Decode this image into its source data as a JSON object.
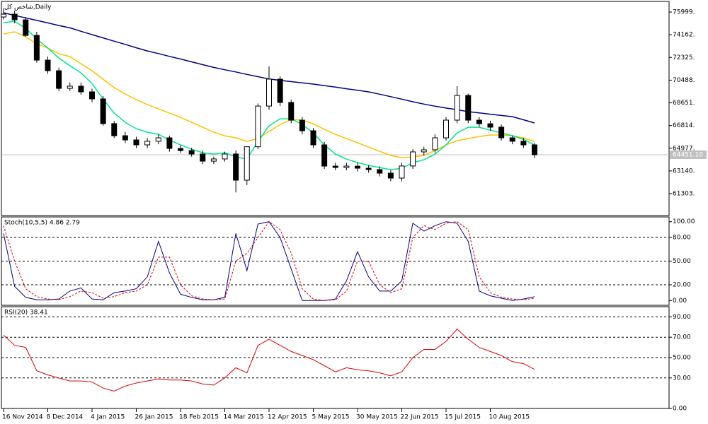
{
  "chart_data": [
    {
      "type": "candlestick",
      "title": "شاخص کل,Daily",
      "categories": [
        "16 Nov 2014",
        null,
        null,
        null,
        "8 Dec 2014",
        null,
        null,
        null,
        "4 Jan 2015",
        null,
        null,
        null,
        "26 Jan 2015",
        null,
        null,
        null,
        "18 Feb 2015",
        null,
        null,
        null,
        "14 Mar 2015",
        null,
        null,
        null,
        "12 Apr 2015",
        null,
        null,
        null,
        "5 May 2015",
        null,
        null,
        null,
        "30 May 2015",
        null,
        null,
        null,
        "22 Jun 2015",
        null,
        null,
        null,
        "15 Jul 2015",
        null,
        null,
        null,
        "10 Aug 2015",
        null,
        null,
        null,
        null
      ],
      "open": [
        75600,
        75830,
        75370,
        74110,
        72110,
        71250,
        69820,
        70000,
        69540,
        68970,
        66970,
        65990,
        65650,
        65250,
        65540,
        65820,
        64960,
        64790,
        64510,
        63930,
        64110,
        64510,
        62390,
        65100,
        68390,
        70570,
        68680,
        67250,
        66390,
        65250,
        63530,
        63420,
        63530,
        63360,
        63250,
        62960,
        62560,
        63540,
        64680,
        64850,
        65820,
        67250,
        69250,
        67250,
        66960,
        66680,
        65820,
        65540,
        65250
      ],
      "high": [
        76300,
        76100,
        75600,
        74400,
        72400,
        71500,
        70300,
        70300,
        69800,
        69200,
        67200,
        66300,
        65900,
        65800,
        66100,
        66000,
        65200,
        65000,
        64800,
        64300,
        64700,
        64800,
        65100,
        68600,
        71600,
        70800,
        68900,
        67500,
        66600,
        65500,
        63800,
        63800,
        63800,
        63600,
        63500,
        63200,
        63800,
        64900,
        65100,
        66100,
        67500,
        70000,
        69400,
        67500,
        67200,
        66900,
        66000,
        65800,
        65400
      ],
      "low": [
        75400,
        75100,
        74000,
        71900,
        71000,
        69600,
        69600,
        69300,
        68700,
        66800,
        65800,
        65400,
        65000,
        65000,
        65300,
        64700,
        64600,
        64300,
        63700,
        63700,
        63900,
        61400,
        62000,
        64900,
        68100,
        68400,
        67000,
        66100,
        65000,
        63300,
        63200,
        63200,
        63100,
        63000,
        62700,
        62300,
        62300,
        63300,
        64400,
        64600,
        65600,
        67000,
        67000,
        66700,
        66400,
        65600,
        65300,
        65000,
        64200
      ],
      "close": [
        75830,
        75370,
        74110,
        72110,
        71250,
        69820,
        70000,
        69540,
        68970,
        66970,
        65990,
        65650,
        65250,
        65540,
        65820,
        64960,
        64790,
        64510,
        63930,
        64110,
        64510,
        62390,
        65100,
        68390,
        70570,
        68680,
        67250,
        66390,
        65250,
        63530,
        63420,
        63530,
        63360,
        63250,
        62960,
        62560,
        63540,
        64680,
        64850,
        65820,
        67250,
        69250,
        67250,
        66960,
        66680,
        65820,
        65540,
        65250,
        64450
      ],
      "series": [
        {
          "color": "#00008b",
          "values": [
            75940,
            75730,
            75530,
            75320,
            75120,
            74910,
            74720,
            74440,
            74170,
            73910,
            73640,
            73380,
            73110,
            72850,
            72640,
            72410,
            72200,
            71970,
            71740,
            71520,
            71330,
            71150,
            70950,
            70770,
            70580,
            70470,
            70370,
            70270,
            70170,
            70050,
            69920,
            69790,
            69670,
            69540,
            69350,
            69150,
            68950,
            68740,
            68550,
            68380,
            68230,
            68090,
            67940,
            67840,
            67730,
            67630,
            67530,
            67280,
            67020
          ]
        },
        {
          "color": "#ffc000",
          "values": [
            74226,
            74398,
            73997,
            73425,
            73082,
            72624,
            72395,
            71823,
            71251,
            70565,
            69879,
            69364,
            68906,
            68506,
            68163,
            67820,
            67476,
            67076,
            66676,
            66275,
            65989,
            65818,
            65532,
            65760,
            66332,
            66904,
            67305,
            67247,
            66961,
            66504,
            66103,
            65760,
            65417,
            65074,
            64730,
            64387,
            64216,
            64273,
            64387,
            64788,
            65245,
            65589,
            65760,
            65932,
            66046,
            66046,
            65989,
            65818,
            65532
          ]
        },
        {
          "color": "#00e68a",
          "values": [
            75141,
            75255,
            74684,
            73825,
            73082,
            72281,
            71652,
            71080,
            70222,
            68964,
            67820,
            67076,
            66561,
            66275,
            66103,
            65646,
            65245,
            64902,
            64616,
            64502,
            64616,
            64273,
            64101,
            65532,
            66790,
            67362,
            67362,
            66904,
            66218,
            65245,
            64502,
            64101,
            63815,
            63586,
            63415,
            63243,
            63357,
            63815,
            64044,
            64502,
            65245,
            66218,
            66676,
            66676,
            66447,
            66218,
            65989,
            65703,
            65245
          ]
        }
      ],
      "ylim": [
        59530,
        76860
      ],
      "yticks": [
        {
          "value": 75999,
          "label": "75999."
        },
        {
          "value": 74162,
          "label": "74162."
        },
        {
          "value": 72325,
          "label": "72325."
        },
        {
          "value": 70488,
          "label": "70488."
        },
        {
          "value": 68651,
          "label": "68651."
        },
        {
          "value": 66814,
          "label": "66814."
        },
        {
          "value": 64977,
          "label": "64977."
        },
        {
          "value": 63140,
          "label": "63140."
        },
        {
          "value": 61303,
          "label": "61303."
        }
      ],
      "current_price": {
        "value": 64451.1,
        "label": "64451.10"
      }
    },
    {
      "type": "line",
      "title": "Stoch(10,5,5) 4.86 2.79",
      "series": [
        {
          "color": "#00008b",
          "style": "solid",
          "values": [
            85,
            18,
            4,
            1,
            1,
            2,
            12,
            16,
            2,
            1,
            10,
            12,
            15,
            30,
            75,
            35,
            8,
            4,
            1,
            1,
            4,
            85,
            38,
            97,
            100,
            80,
            40,
            0,
            0,
            0,
            2,
            25,
            62,
            30,
            12,
            12,
            25,
            98,
            88,
            95,
            100,
            98,
            75,
            12,
            6,
            3,
            0,
            2,
            4.86
          ]
        },
        {
          "color": "#e00000",
          "style": "dashed",
          "values": [
            95,
            50,
            15,
            5,
            2,
            1,
            5,
            12,
            10,
            3,
            5,
            10,
            12,
            20,
            55,
            55,
            20,
            6,
            2,
            1,
            2,
            50,
            60,
            80,
            100,
            90,
            60,
            15,
            2,
            0,
            1,
            12,
            50,
            50,
            20,
            10,
            15,
            80,
            95,
            90,
            98,
            100,
            90,
            30,
            10,
            4,
            2,
            1,
            2.79
          ]
        }
      ],
      "ylim": [
        -6,
        106
      ],
      "yticks": [
        {
          "value": 100,
          "label": "100.00"
        },
        {
          "value": 80,
          "label": "80.00"
        },
        {
          "value": 50,
          "label": "50.00"
        },
        {
          "value": 20,
          "label": "20.00"
        },
        {
          "value": 0,
          "label": "0.00"
        }
      ],
      "levels": [
        80,
        50,
        20
      ]
    },
    {
      "type": "line",
      "title": "RSI(20) 38.41",
      "series": [
        {
          "color": "#e00000",
          "style": "solid",
          "values": [
            72,
            62,
            60,
            37,
            33,
            30,
            27,
            27,
            26,
            20,
            17,
            22,
            25,
            27,
            29,
            28,
            28,
            27,
            24,
            23,
            30,
            40,
            35,
            62,
            68,
            62,
            56,
            52,
            48,
            42,
            36,
            40,
            38,
            37,
            35,
            32,
            36,
            50,
            58,
            58,
            66,
            78,
            68,
            60,
            56,
            52,
            46,
            44,
            38.41
          ]
        }
      ],
      "ylim": [
        0,
        100
      ],
      "yticks": [
        {
          "value": 90,
          "label": "90.00"
        },
        {
          "value": 70,
          "label": "70.00"
        },
        {
          "value": 50,
          "label": "50.00"
        },
        {
          "value": 30,
          "label": "30.00"
        },
        {
          "value": 0,
          "label": "0.00"
        }
      ],
      "levels": [
        90,
        70,
        50,
        30
      ]
    }
  ]
}
